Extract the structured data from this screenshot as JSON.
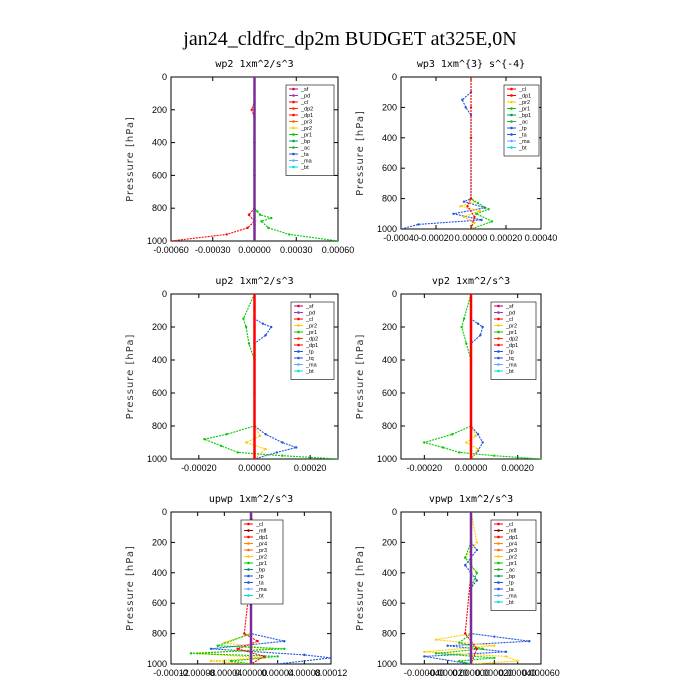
{
  "title": "jan24_cldfrc_dp2m  BUDGET at325E,0N",
  "chart_data": [
    {
      "type": "line",
      "title": "wp2  1xm^2/s^3",
      "ylabel": "Pressure [hPa]",
      "ylim": [
        0,
        1000
      ],
      "yticks": [
        0,
        200,
        400,
        600,
        800,
        1000
      ],
      "xlim": [
        -0.0006,
        0.0006
      ],
      "xticks": [
        -0.0006,
        -0.0003,
        0.0,
        0.0003,
        0.0006
      ],
      "xtick_labels": [
        "-0.00060",
        "-0.00030",
        "0.00000",
        "0.00030",
        "0.00060"
      ],
      "legend": [
        "_sf",
        "_pd",
        "_cl",
        "_dp2",
        "_dp1",
        "_pr3",
        "_pr2",
        "_pr1",
        "_bp",
        "_ac",
        "_ta",
        "_ma",
        "_bt"
      ],
      "series": [
        {
          "name": "_dp1",
          "color": "#ff0000",
          "x": [
            0,
            0,
            0,
            -2e-05,
            0,
            0,
            0,
            0,
            -4e-05,
            0,
            -5e-05,
            -0.0002,
            -0.0006
          ],
          "y": [
            0,
            100,
            150,
            200,
            250,
            400,
            600,
            800,
            840,
            880,
            920,
            960,
            1000
          ]
        },
        {
          "name": "_pr1",
          "color": "#00cc00",
          "x": [
            0,
            0,
            0,
            0,
            0,
            2e-05,
            4e-05,
            0.00012,
            5e-05,
            0.0001,
            0.00025,
            0.0006
          ],
          "y": [
            0,
            200,
            400,
            600,
            800,
            820,
            840,
            860,
            880,
            920,
            960,
            1000
          ]
        },
        {
          "name": "_bt",
          "color": "#7a2d9a",
          "x": [
            0,
            0,
            0,
            0,
            0,
            0,
            0
          ],
          "y": [
            0,
            200,
            400,
            600,
            800,
            900,
            1000
          ]
        }
      ]
    },
    {
      "type": "line",
      "title": "wp3  1xm^{3} s^{-4}",
      "ylabel": "Pressure [hPa]",
      "ylim": [
        0,
        1000
      ],
      "yticks": [
        0,
        200,
        400,
        600,
        800,
        1000
      ],
      "xlim": [
        -0.0004,
        0.0004
      ],
      "xticks": [
        -0.0004,
        -0.0002,
        0.0,
        0.0002,
        0.0004
      ],
      "xtick_labels": [
        "-0.00040",
        "-0.00020",
        "0.00000",
        "0.00020",
        "0.00040"
      ],
      "legend": [
        "_cl",
        "_dp1",
        "_pr2",
        "_pr1",
        "_bp1",
        "_ac",
        "_tp",
        "_ta",
        "_ma",
        "_bt"
      ],
      "series": [
        {
          "name": "_tp",
          "color": "#2255dd",
          "x": [
            0,
            0,
            -5e-05,
            -3e-05,
            0,
            0,
            0,
            -4e-05,
            8e-05,
            -0.0001,
            6e-05,
            -0.0003,
            -0.0004
          ],
          "y": [
            0,
            100,
            150,
            200,
            250,
            400,
            800,
            820,
            860,
            900,
            940,
            970,
            1000
          ]
        },
        {
          "name": "_pr2",
          "color": "#ffcc00",
          "x": [
            0,
            0,
            0,
            2e-05,
            -6e-05,
            5e-05,
            -4e-05,
            2e-05,
            0
          ],
          "y": [
            0,
            400,
            800,
            820,
            850,
            880,
            920,
            960,
            1000
          ]
        },
        {
          "name": "_pr1",
          "color": "#00cc00",
          "x": [
            0,
            0,
            0,
            4e-05,
            0.0001,
            3e-05,
            0.00012,
            0
          ],
          "y": [
            0,
            400,
            800,
            830,
            870,
            900,
            950,
            1000
          ]
        },
        {
          "name": "_dp1",
          "color": "#ff0000",
          "x": [
            0,
            0,
            0,
            0,
            -2e-05,
            2e-05,
            0
          ],
          "y": [
            0,
            200,
            400,
            800,
            850,
            920,
            1000
          ]
        }
      ]
    },
    {
      "type": "line",
      "title": "up2  1xm^2/s^3",
      "ylabel": "Pressure [hPa]",
      "ylim": [
        0,
        1000
      ],
      "yticks": [
        0,
        200,
        400,
        600,
        800,
        1000
      ],
      "xlim": [
        -0.0003,
        0.0003
      ],
      "xticks": [
        -0.0002,
        0.0,
        0.0002
      ],
      "xtick_labels": [
        "-0.00020",
        "0.00000",
        "0.00020"
      ],
      "legend": [
        "_sf",
        "_pd",
        "_cl",
        "_pr2",
        "_pr1",
        "_dp2",
        "_dp1",
        "_tp",
        "_tq",
        "_ma",
        "_bt"
      ],
      "series": [
        {
          "name": "_tp",
          "color": "#2255dd",
          "x": [
            0,
            0,
            3e-05,
            6e-05,
            4e-05,
            0,
            0,
            4e-05,
            0.0001,
            0.00015,
            8e-05,
            0
          ],
          "y": [
            0,
            150,
            180,
            200,
            250,
            300,
            800,
            850,
            900,
            930,
            960,
            1000
          ]
        },
        {
          "name": "_pr1",
          "color": "#00cc00",
          "x": [
            0,
            -4e-05,
            -3e-05,
            -2e-05,
            0,
            0,
            -0.0001,
            -0.00018,
            -0.00012,
            -6e-05,
            0.0001,
            0.0003
          ],
          "y": [
            0,
            150,
            200,
            300,
            400,
            800,
            850,
            880,
            920,
            960,
            980,
            1000
          ]
        },
        {
          "name": "_pr2",
          "color": "#ffcc00",
          "x": [
            0,
            0,
            0,
            2e-05,
            -3e-05,
            4e-05,
            0
          ],
          "y": [
            0,
            400,
            800,
            860,
            900,
            940,
            1000
          ]
        },
        {
          "name": "_cl",
          "color": "#ff0000",
          "x": [
            0,
            0,
            0,
            0,
            0,
            0
          ],
          "y": [
            0,
            200,
            400,
            600,
            800,
            1000
          ]
        }
      ]
    },
    {
      "type": "line",
      "title": "vp2  1xm^2/s^3",
      "ylabel": "Pressure [hPa]",
      "ylim": [
        0,
        1000
      ],
      "yticks": [
        0,
        200,
        400,
        600,
        800,
        1000
      ],
      "xlim": [
        -0.0003,
        0.0003
      ],
      "xticks": [
        -0.0002,
        0.0,
        0.0002
      ],
      "xtick_labels": [
        "-0.00020",
        "0.00000",
        "0.00020"
      ],
      "legend": [
        "_sf",
        "_pd",
        "_cl",
        "_pr2",
        "_pr1",
        "_dp2",
        "_dp1",
        "_tp",
        "_tq",
        "_ma",
        "_bt"
      ],
      "series": [
        {
          "name": "_tp",
          "color": "#2255dd",
          "x": [
            0,
            0,
            3e-05,
            5e-05,
            4e-05,
            0,
            0,
            3e-05,
            5e-05,
            3e-05,
            0
          ],
          "y": [
            0,
            150,
            180,
            200,
            250,
            300,
            800,
            850,
            900,
            950,
            1000
          ]
        },
        {
          "name": "_pr1",
          "color": "#00cc00",
          "x": [
            0,
            -3e-05,
            -4e-05,
            -2e-05,
            0,
            0,
            -8e-05,
            -0.0002,
            -0.00012,
            -5e-05,
            0.0001,
            0.0003
          ],
          "y": [
            0,
            150,
            200,
            300,
            400,
            800,
            850,
            900,
            930,
            960,
            980,
            1000
          ]
        },
        {
          "name": "_pr2",
          "color": "#ffcc00",
          "x": [
            0,
            0,
            0,
            2e-05,
            -2e-05,
            3e-05,
            0
          ],
          "y": [
            0,
            400,
            800,
            860,
            900,
            940,
            1000
          ]
        },
        {
          "name": "_cl",
          "color": "#ff0000",
          "x": [
            0,
            0,
            0,
            0,
            0,
            0
          ],
          "y": [
            0,
            200,
            400,
            600,
            800,
            1000
          ]
        }
      ]
    },
    {
      "type": "line",
      "title": "upwp  1xm^2/s^3",
      "ylabel": "Pressure [hPa]",
      "ylim": [
        0,
        1000
      ],
      "yticks": [
        0,
        200,
        400,
        600,
        800,
        1000
      ],
      "xlim": [
        -0.00012,
        0.00012
      ],
      "xticks": [
        -0.00012,
        -8e-05,
        -4e-05,
        0.0,
        4e-05,
        8e-05,
        0.00012
      ],
      "xtick_labels": [
        "-0.00012",
        "-0.00008",
        "-0.00004",
        "0.00000",
        "0.00004",
        "0.00008",
        "0.00012"
      ],
      "legend": [
        "_cl",
        "_mfl",
        "_dp1",
        "_pr4",
        "_pr3",
        "_pr2",
        "_pr1",
        "_bp",
        "_tp",
        "_ta",
        "_ma",
        "_bt"
      ],
      "series": [
        {
          "name": "_tp",
          "color": "#2255dd",
          "x": [
            0,
            0,
            -1e-05,
            1e-05,
            -1e-05,
            0,
            0,
            5e-05,
            -6e-05,
            8e-05,
            0.00012,
            4e-05
          ],
          "y": [
            0,
            200,
            250,
            350,
            450,
            500,
            800,
            850,
            900,
            940,
            960,
            1000
          ]
        },
        {
          "name": "_pr2",
          "color": "#ffcc00",
          "x": [
            0,
            1e-05,
            -1e-05,
            1e-05,
            0,
            0,
            -4e-05,
            3e-05,
            -8e-05,
            2e-05,
            -6e-05,
            0
          ],
          "y": [
            0,
            200,
            300,
            400,
            500,
            800,
            860,
            900,
            930,
            960,
            980,
            1000
          ]
        },
        {
          "name": "_pr1",
          "color": "#00cc00",
          "x": [
            0,
            0,
            -1e-05,
            1e-05,
            0,
            0,
            -5e-05,
            5e-05,
            -9e-05,
            4e-05,
            -3e-05,
            0
          ],
          "y": [
            0,
            200,
            300,
            400,
            500,
            800,
            880,
            900,
            930,
            950,
            980,
            1000
          ]
        },
        {
          "name": "_dp1",
          "color": "#ff0000",
          "x": [
            0,
            0,
            0,
            -1e-05,
            1e-05,
            -2e-05,
            2e-05,
            0
          ],
          "y": [
            0,
            200,
            400,
            800,
            850,
            900,
            950,
            1000
          ]
        },
        {
          "name": "_bt",
          "color": "#7a2d9a",
          "x": [
            0,
            0,
            0,
            0,
            0,
            0
          ],
          "y": [
            0,
            200,
            400,
            600,
            800,
            1000
          ]
        }
      ]
    },
    {
      "type": "line",
      "title": "vpwp  1xm^2/s^3",
      "ylabel": "Pressure [hPa]",
      "ylim": [
        0,
        1000
      ],
      "yticks": [
        0,
        200,
        400,
        600,
        800,
        1000
      ],
      "xlim": [
        -6e-05,
        6e-05
      ],
      "xticks": [
        -4e-05,
        -2e-05,
        0.0,
        2e-05,
        4e-05,
        6e-05
      ],
      "xtick_labels": [
        "-0.000040",
        "-0.000020",
        "0.000000",
        "0.000020",
        "0.000040",
        "0.000060"
      ],
      "legend": [
        "_cl",
        "_mfl",
        "_dp1",
        "_pr4",
        "_pr3",
        "_pr2",
        "_pr1",
        "_ac",
        "_bp",
        "_tp",
        "_ta",
        "_ma",
        "_bt"
      ],
      "series": [
        {
          "name": "_tp",
          "color": "#2255dd",
          "x": [
            0,
            0,
            5e-06,
            -5e-06,
            5e-06,
            0,
            0,
            2e-05,
            5e-05,
            -2e-05,
            3e-05,
            -4e-05,
            0
          ],
          "y": [
            0,
            200,
            250,
            350,
            450,
            500,
            800,
            820,
            850,
            880,
            920,
            950,
            1000
          ]
        },
        {
          "name": "_pr2",
          "color": "#ffcc00",
          "x": [
            0,
            5e-06,
            -5e-06,
            5e-06,
            0,
            0,
            -3e-05,
            2e-05,
            -4e-05,
            3e-05,
            4e-05,
            0
          ],
          "y": [
            0,
            200,
            300,
            400,
            500,
            800,
            840,
            880,
            920,
            950,
            980,
            1000
          ]
        },
        {
          "name": "_pr1",
          "color": "#00cc00",
          "x": [
            0,
            0,
            -5e-06,
            5e-06,
            0,
            0,
            -1e-05,
            1e-05,
            -3e-05,
            2e-05,
            -1e-05,
            0
          ],
          "y": [
            0,
            200,
            300,
            400,
            500,
            800,
            860,
            900,
            930,
            960,
            980,
            1000
          ]
        },
        {
          "name": "_dp1",
          "color": "#ff0000",
          "x": [
            0,
            0,
            0,
            -5e-06,
            5e-06,
            0
          ],
          "y": [
            0,
            200,
            400,
            800,
            900,
            1000
          ]
        },
        {
          "name": "_bt",
          "color": "#7a2d9a",
          "x": [
            0,
            0,
            0,
            0,
            0,
            0
          ],
          "y": [
            0,
            200,
            400,
            600,
            800,
            1000
          ]
        }
      ]
    }
  ],
  "legend_colors": {
    "_sf": "#cc0066",
    "_pd": "#9933cc",
    "_cl": "#ff0000",
    "_mfl": "#880000",
    "_dp2": "#ff3300",
    "_dp1": "#ff0000",
    "_pr4": "#ff8800",
    "_pr3": "#ff6600",
    "_pr2": "#ffcc00",
    "_pr1": "#00cc00",
    "_bp": "#009966",
    "_bp1": "#009966",
    "_ac": "#33aa33",
    "_tp": "#2255dd",
    "_ta": "#2255dd",
    "_tq": "#2255dd",
    "_ma": "#66aaff",
    "_bt": "#00dddd"
  }
}
